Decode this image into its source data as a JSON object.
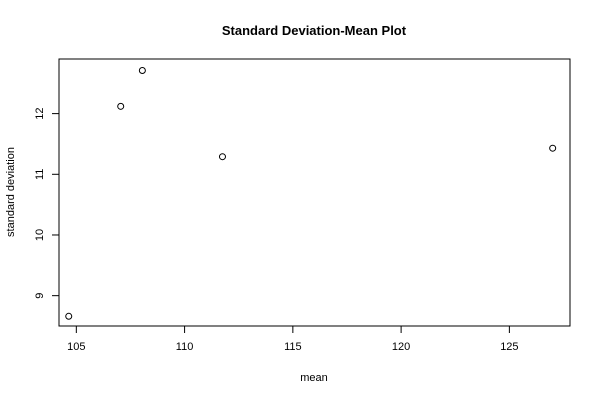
{
  "chart_data": {
    "type": "scatter",
    "title": "Standard Deviation-Mean Plot",
    "xlabel": "mean",
    "ylabel": "standard deviation",
    "xlim": [
      104.2,
      127.8
    ],
    "ylim": [
      8.5,
      12.9
    ],
    "x_ticks": [
      105,
      110,
      115,
      120,
      125
    ],
    "y_ticks": [
      9,
      10,
      11,
      12
    ],
    "x_tick_labels": [
      "105",
      "110",
      "115",
      "120",
      "125"
    ],
    "y_tick_labels": [
      "9",
      "10",
      "11",
      "12"
    ],
    "grid": false,
    "legend": "none",
    "points": [
      {
        "x": 104.65,
        "y": 8.66
      },
      {
        "x": 107.05,
        "y": 12.12
      },
      {
        "x": 108.05,
        "y": 12.71
      },
      {
        "x": 111.75,
        "y": 11.29
      },
      {
        "x": 127.0,
        "y": 11.43
      }
    ],
    "colors": {
      "axis": "#000000",
      "marker": "#000000",
      "background": "#ffffff"
    }
  }
}
